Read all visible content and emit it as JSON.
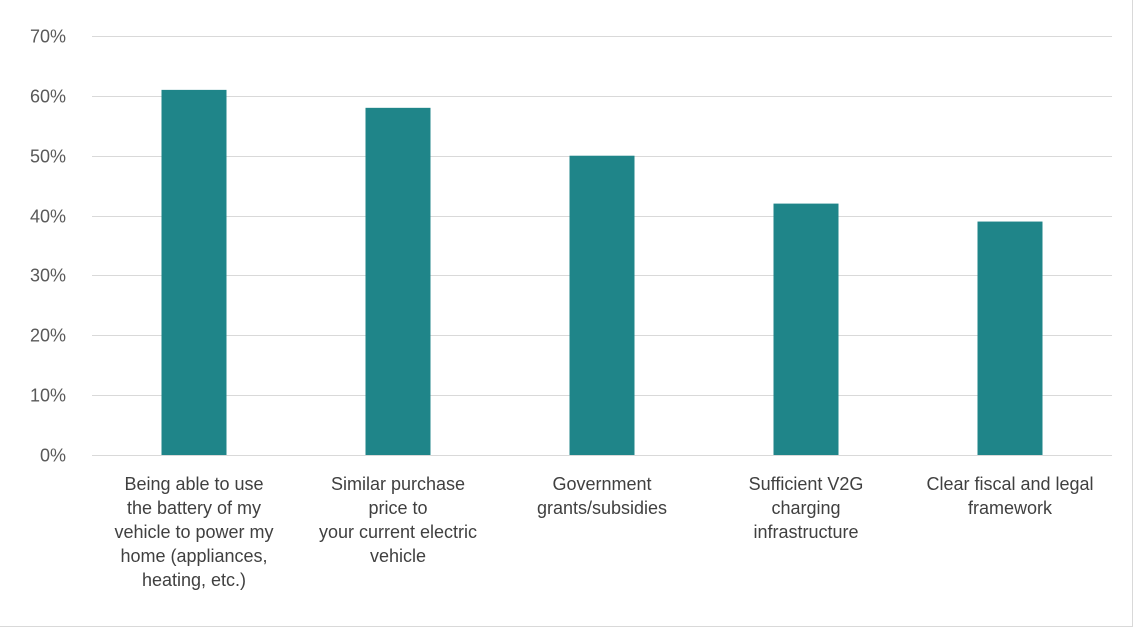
{
  "chart_data": {
    "type": "bar",
    "title": "",
    "xlabel": "",
    "ylabel": "",
    "ylim": [
      0,
      70
    ],
    "y_ticks": [
      "0%",
      "10%",
      "20%",
      "30%",
      "40%",
      "50%",
      "60%",
      "70%"
    ],
    "y_tick_values": [
      0,
      10,
      20,
      30,
      40,
      50,
      60,
      70
    ],
    "grid": true,
    "legend": "none",
    "bar_color": "#1f8589",
    "categories": [
      [
        "Being able to use",
        "the battery of my",
        "vehicle to power my",
        "home (appliances,",
        "heating, etc.)"
      ],
      [
        "Similar purchase",
        "price to",
        "your current electric",
        "vehicle"
      ],
      [
        "Government",
        "grants/subsidies"
      ],
      [
        "Sufficient V2G",
        "charging",
        "infrastructure"
      ],
      [
        "Clear fiscal and legal",
        "framework"
      ]
    ],
    "values": [
      61,
      58,
      50,
      42,
      39
    ]
  }
}
